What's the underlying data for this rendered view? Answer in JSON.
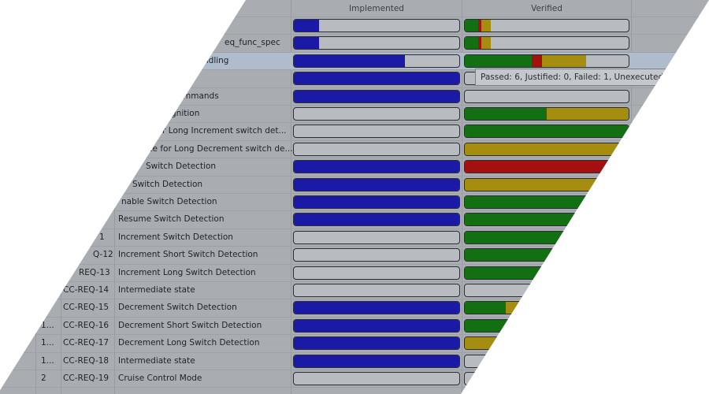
{
  "header": {
    "implemented": "Implemented",
    "verified": "Verified"
  },
  "colors": {
    "implemented": "#1a1aa6",
    "verified": [
      "#127012",
      "#a40f0f",
      "#a58d10"
    ]
  },
  "tooltip": "Passed: 6, Justified: 0, Failed: 1, Unexecuted: 4",
  "rows": [
    {
      "implemented": 15,
      "verified": [
        8,
        2,
        6
      ]
    },
    {
      "name": "eq_func_spec",
      "implemented": 15,
      "verified": [
        8,
        2,
        6
      ]
    },
    {
      "name": "ndling",
      "implemented": 67,
      "verified": [
        41,
        6,
        27
      ]
    },
    {
      "implemented": 100,
      "verified": [
        0,
        0,
        0
      ]
    },
    {
      "name": "mmands",
      "implemented": 100,
      "verified": [
        0,
        0,
        0
      ]
    },
    {
      "name": "gnition",
      "implemented": 0,
      "verified": [
        50,
        0,
        50
      ]
    },
    {
      "name": "for Long Increment switch det...",
      "implemented": 0,
      "verified": [
        100,
        0,
        0
      ]
    },
    {
      "name": "ate for Long Decrement switch de...",
      "implemented": 0,
      "verified": [
        0,
        0,
        100
      ]
    },
    {
      "name": "Switch Detection",
      "implemented": 100,
      "verified": [
        0,
        100,
        0
      ]
    },
    {
      "name": "Switch Detection",
      "implemented": 100,
      "verified": [
        0,
        0,
        100
      ]
    },
    {
      "name": "nable Switch Detection",
      "implemented": 100,
      "verified": [
        100,
        0,
        0
      ]
    },
    {
      "name": "Resume Switch Detection",
      "implemented": 100,
      "verified": [
        100,
        0,
        0
      ]
    },
    {
      "id": "1",
      "name": "Increment Switch Detection",
      "implemented": 0,
      "verified": [
        100,
        0,
        0
      ]
    },
    {
      "id": "Q-12",
      "name": "Increment Short Switch Detection",
      "implemented": 0,
      "verified": [
        100,
        0,
        0
      ]
    },
    {
      "id": "REQ-13",
      "name": "Increment Long Switch Detection",
      "implemented": 0,
      "verified": [
        100,
        0,
        0
      ]
    },
    {
      "id": "CC-REQ-14",
      "name": "Intermediate state",
      "implemented": 0,
      "verified": [
        0,
        0,
        0
      ]
    },
    {
      "id": "CC-REQ-15",
      "name": "Decrement Switch Detection",
      "implemented": 100,
      "verified": [
        25,
        0,
        75
      ]
    },
    {
      "num": "1...",
      "id": "CC-REQ-16",
      "name": "Decrement Short Switch Detection",
      "implemented": 100,
      "verified": [
        100,
        0,
        0
      ]
    },
    {
      "num": "1...",
      "id": "CC-REQ-17",
      "name": "Decrement Long Switch Detection",
      "implemented": 100,
      "verified": [
        0,
        0,
        100
      ]
    },
    {
      "num": "1...",
      "id": "CC-REQ-18",
      "name": "Intermediate state",
      "implemented": 100,
      "verified": [
        0,
        0,
        0
      ]
    },
    {
      "num": "2",
      "id": "CC-REQ-19",
      "name": "Cruise Control Mode",
      "implemented": 0,
      "verified": [
        0,
        0,
        0
      ]
    }
  ]
}
